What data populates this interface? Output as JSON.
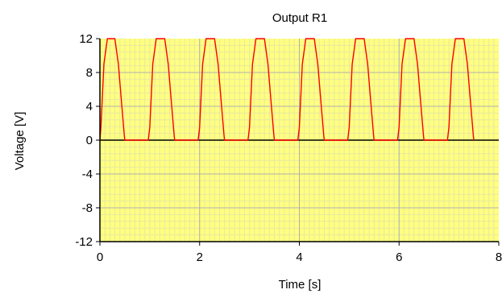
{
  "chart_data": {
    "type": "line",
    "title": "Output R1",
    "xlabel": "Time [s]",
    "ylabel": "Voltage [V]",
    "xlim": [
      0,
      8
    ],
    "ylim": [
      -12,
      12
    ],
    "x_ticks": [
      0,
      2,
      4,
      6,
      8
    ],
    "x_tick_labels": [
      "0",
      "2",
      "4",
      "6",
      "8"
    ],
    "y_ticks": [
      12,
      8,
      4,
      0,
      -4,
      -8,
      -12
    ],
    "y_tick_labels": [
      "12",
      "8",
      "4",
      "0",
      "-4",
      "-8",
      "-12"
    ],
    "grid": true,
    "colors": {
      "plot_background": "#ffff80",
      "minor_grid": "#e8e8a0",
      "major_grid": "#b0b0b0",
      "series": "#ff0000",
      "zero_line": "#000000"
    },
    "series": [
      {
        "x": [
          0,
          0.02,
          0.08,
          0.15,
          0.3,
          0.37,
          0.44,
          0.49,
          0.5,
          0.97,
          1.0,
          1.06,
          1.13,
          1.3,
          1.37,
          1.44,
          1.49,
          1.5,
          1.97,
          2.0,
          2.06,
          2.13,
          2.3,
          2.37,
          2.44,
          2.49,
          2.5,
          2.97,
          3.0,
          3.06,
          3.13,
          3.3,
          3.37,
          3.44,
          3.49,
          3.5,
          3.97,
          4.0,
          4.06,
          4.13,
          4.3,
          4.37,
          4.44,
          4.49,
          4.5,
          4.97,
          5.0,
          5.06,
          5.13,
          5.3,
          5.37,
          5.44,
          5.49,
          5.5,
          5.97,
          6.0,
          6.06,
          6.13,
          6.3,
          6.37,
          6.44,
          6.49,
          6.5,
          6.97,
          7.0,
          7.06,
          7.13,
          7.3,
          7.37,
          7.44,
          7.49,
          7.5
        ],
        "y": [
          0,
          1.5,
          9,
          12,
          12,
          9,
          4,
          0.5,
          0,
          0,
          1.5,
          9,
          12,
          12,
          9,
          4,
          0.5,
          0,
          0,
          1.5,
          9,
          12,
          12,
          9,
          4,
          0.5,
          0,
          0,
          1.5,
          9,
          12,
          12,
          9,
          4,
          0.5,
          0,
          0,
          1.5,
          9,
          12,
          12,
          9,
          4,
          0.5,
          0,
          0,
          1.5,
          9,
          12,
          12,
          9,
          4,
          0.5,
          0,
          0,
          1.5,
          9,
          12,
          12,
          9,
          4,
          0.5,
          0,
          0,
          1.5,
          9,
          12,
          12,
          9,
          4,
          0.5,
          0
        ]
      }
    ]
  }
}
